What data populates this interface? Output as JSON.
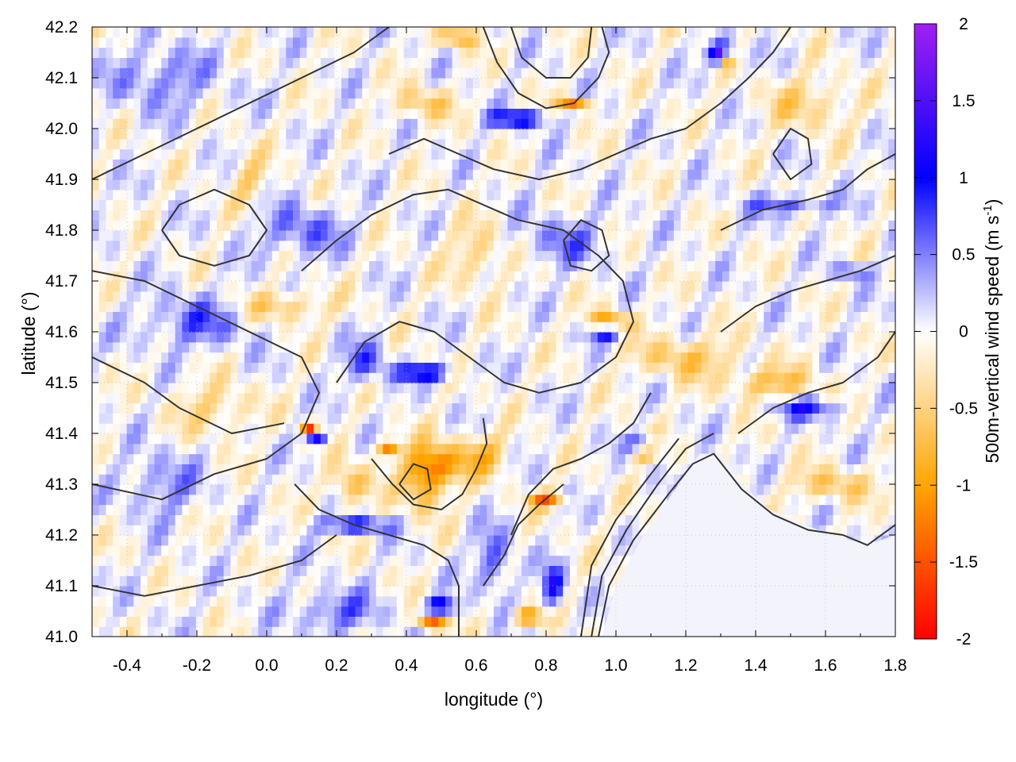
{
  "chart_data": {
    "type": "heatmap",
    "title": "",
    "xlabel": "longitude (°)",
    "ylabel": "latitude (°)",
    "colorbar_label": "500m-vertical wind speed (m s",
    "colorbar_label_sup": "-1",
    "colorbar_label_end": ")",
    "xlim": [
      -0.5,
      1.8
    ],
    "ylim": [
      41.0,
      42.2
    ],
    "clim": [
      -2,
      2
    ],
    "x_ticks": [
      {
        "value": -0.4,
        "label": "-0.4"
      },
      {
        "value": -0.2,
        "label": "-0.2"
      },
      {
        "value": 0.0,
        "label": "0.0"
      },
      {
        "value": 0.2,
        "label": "0.2"
      },
      {
        "value": 0.4,
        "label": "0.4"
      },
      {
        "value": 0.6,
        "label": "0.6"
      },
      {
        "value": 0.8,
        "label": "0.8"
      },
      {
        "value": 1.0,
        "label": "1.0"
      },
      {
        "value": 1.2,
        "label": "1.2"
      },
      {
        "value": 1.4,
        "label": "1.4"
      },
      {
        "value": 1.6,
        "label": "1.6"
      },
      {
        "value": 1.8,
        "label": "1.8"
      }
    ],
    "y_ticks": [
      {
        "value": 41.0,
        "label": "41.0"
      },
      {
        "value": 41.1,
        "label": "41.1"
      },
      {
        "value": 41.2,
        "label": "41.2"
      },
      {
        "value": 41.3,
        "label": "41.3"
      },
      {
        "value": 41.4,
        "label": "41.4"
      },
      {
        "value": 41.5,
        "label": "41.5"
      },
      {
        "value": 41.6,
        "label": "41.6"
      },
      {
        "value": 41.7,
        "label": "41.7"
      },
      {
        "value": 41.8,
        "label": "41.8"
      },
      {
        "value": 41.9,
        "label": "41.9"
      },
      {
        "value": 42.0,
        "label": "42.0"
      },
      {
        "value": 42.1,
        "label": "42.1"
      },
      {
        "value": 42.2,
        "label": "42.2"
      }
    ],
    "colorbar_ticks": [
      {
        "value": 2,
        "label": "2"
      },
      {
        "value": 1.5,
        "label": "1.5"
      },
      {
        "value": 1,
        "label": "1"
      },
      {
        "value": 0.5,
        "label": "0.5"
      },
      {
        "value": 0,
        "label": "0"
      },
      {
        "value": -0.5,
        "label": "-0.5"
      },
      {
        "value": -1,
        "label": "-1"
      },
      {
        "value": -1.5,
        "label": "-1.5"
      },
      {
        "value": -2,
        "label": "-2"
      }
    ],
    "colormap": [
      {
        "value": -2,
        "color": "#ff0000"
      },
      {
        "value": -1,
        "color": "#ffa500"
      },
      {
        "value": 0,
        "color": "#ffffff"
      },
      {
        "value": 1,
        "color": "#0000ff"
      },
      {
        "value": 2,
        "color": "#a020f0"
      }
    ],
    "grid": true,
    "contour_color": "#333333",
    "sea_region_color": "#f2f3fb",
    "features": [
      {
        "lon": 0.28,
        "lat": 41.54,
        "value": 0.7,
        "rx": 0.06,
        "ry": 0.04
      },
      {
        "lon": 0.45,
        "lat": 41.52,
        "value": 1.3,
        "rx": 0.08,
        "ry": 0.015
      },
      {
        "lon": 0.12,
        "lat": 41.41,
        "value": -1.6,
        "rx": 0.02,
        "ry": 0.012
      },
      {
        "lon": 0.14,
        "lat": 41.39,
        "value": 1.3,
        "rx": 0.03,
        "ry": 0.01
      },
      {
        "lon": 0.35,
        "lat": 41.37,
        "value": -1.4,
        "rx": 0.03,
        "ry": 0.015
      },
      {
        "lon": 0.45,
        "lat": 41.31,
        "value": -1.0,
        "rx": 0.06,
        "ry": 0.06
      },
      {
        "lon": 0.5,
        "lat": 41.34,
        "value": -0.8,
        "rx": 0.08,
        "ry": 0.04
      },
      {
        "lon": 0.62,
        "lat": 41.36,
        "value": -0.7,
        "rx": 0.07,
        "ry": 0.04
      },
      {
        "lon": 0.25,
        "lat": 41.22,
        "value": 1.4,
        "rx": 0.1,
        "ry": 0.012
      },
      {
        "lon": 0.24,
        "lat": 41.3,
        "value": -0.7,
        "rx": 0.06,
        "ry": 0.04
      },
      {
        "lon": 0.5,
        "lat": 41.06,
        "value": 1.5,
        "rx": 0.04,
        "ry": 0.015
      },
      {
        "lon": 0.47,
        "lat": 41.03,
        "value": -1.5,
        "rx": 0.04,
        "ry": 0.015
      },
      {
        "lon": 0.75,
        "lat": 41.04,
        "value": -1.3,
        "rx": 0.04,
        "ry": 0.015
      },
      {
        "lon": 0.8,
        "lat": 41.27,
        "value": -1.3,
        "rx": 0.05,
        "ry": 0.015
      },
      {
        "lon": 0.82,
        "lat": 41.1,
        "value": 1.1,
        "rx": 0.03,
        "ry": 0.04
      },
      {
        "lon": 0.88,
        "lat": 42.05,
        "value": -1.5,
        "rx": 0.04,
        "ry": 0.012
      },
      {
        "lon": 0.72,
        "lat": 42.02,
        "value": 1.3,
        "rx": 0.08,
        "ry": 0.015
      },
      {
        "lon": 0.98,
        "lat": 41.62,
        "value": -1.1,
        "rx": 0.06,
        "ry": 0.02
      },
      {
        "lon": 0.97,
        "lat": 41.6,
        "value": 1.2,
        "rx": 0.05,
        "ry": 0.015
      },
      {
        "lon": 1.07,
        "lat": 41.38,
        "value": 1.1,
        "rx": 0.05,
        "ry": 0.01
      },
      {
        "lon": 1.08,
        "lat": 41.36,
        "value": -1.2,
        "rx": 0.04,
        "ry": 0.01
      },
      {
        "lon": 1.3,
        "lat": 42.15,
        "value": 1.6,
        "rx": 0.04,
        "ry": 0.02
      },
      {
        "lon": 1.32,
        "lat": 42.14,
        "value": -1.5,
        "rx": 0.015,
        "ry": 0.015
      },
      {
        "lon": 0.55,
        "lat": 42.18,
        "value": -0.9,
        "rx": 0.05,
        "ry": 0.02
      },
      {
        "lon": 0.45,
        "lat": 42.05,
        "value": -0.6,
        "rx": 0.08,
        "ry": 0.03
      },
      {
        "lon": 0.1,
        "lat": 41.8,
        "value": 0.6,
        "rx": 0.12,
        "ry": 0.05
      },
      {
        "lon": -0.05,
        "lat": 41.9,
        "value": -0.5,
        "rx": 0.05,
        "ry": 0.05
      },
      {
        "lon": -0.2,
        "lat": 41.62,
        "value": 0.6,
        "rx": 0.15,
        "ry": 0.05
      },
      {
        "lon": -0.3,
        "lat": 41.3,
        "value": 0.5,
        "rx": 0.1,
        "ry": 0.06
      },
      {
        "lon": -0.15,
        "lat": 41.45,
        "value": -0.5,
        "rx": 0.1,
        "ry": 0.05
      },
      {
        "lon": 0.05,
        "lat": 41.65,
        "value": -0.6,
        "rx": 0.12,
        "ry": 0.03
      },
      {
        "lon": 1.2,
        "lat": 41.55,
        "value": -0.6,
        "rx": 0.15,
        "ry": 0.04
      },
      {
        "lon": 1.45,
        "lat": 41.5,
        "value": -0.7,
        "rx": 0.12,
        "ry": 0.03
      },
      {
        "lon": 1.55,
        "lat": 41.45,
        "value": 0.8,
        "rx": 0.1,
        "ry": 0.02
      },
      {
        "lon": 1.68,
        "lat": 41.72,
        "value": 1.0,
        "rx": 0.05,
        "ry": 0.012
      },
      {
        "lon": 1.5,
        "lat": 41.85,
        "value": 0.7,
        "rx": 0.12,
        "ry": 0.02
      },
      {
        "lon": 1.62,
        "lat": 41.3,
        "value": -0.6,
        "rx": 0.12,
        "ry": 0.03
      },
      {
        "lon": 0.6,
        "lat": 41.75,
        "value": -0.5,
        "rx": 0.08,
        "ry": 0.06
      },
      {
        "lon": 0.85,
        "lat": 41.78,
        "value": 0.5,
        "rx": 0.12,
        "ry": 0.05
      },
      {
        "lon": -0.3,
        "lat": 42.1,
        "value": 0.5,
        "rx": 0.15,
        "ry": 0.06
      },
      {
        "lon": 1.55,
        "lat": 42.05,
        "value": -0.5,
        "rx": 0.12,
        "ry": 0.05
      },
      {
        "lon": 0.2,
        "lat": 41.05,
        "value": 0.6,
        "rx": 0.12,
        "ry": 0.04
      },
      {
        "lon": 0.65,
        "lat": 41.15,
        "value": 0.7,
        "rx": 0.05,
        "ry": 0.06
      }
    ],
    "sea_polygon": [
      [
        0.96,
        41.0
      ],
      [
        1.0,
        41.1
      ],
      [
        1.08,
        41.2
      ],
      [
        1.18,
        41.3
      ],
      [
        1.24,
        41.36
      ],
      [
        1.3,
        41.36
      ],
      [
        1.36,
        41.3
      ],
      [
        1.44,
        41.25
      ],
      [
        1.54,
        41.22
      ],
      [
        1.62,
        41.2
      ],
      [
        1.72,
        41.18
      ],
      [
        1.8,
        41.2
      ],
      [
        1.8,
        41.0
      ]
    ],
    "contours": [
      [
        [
          0.95,
          41.0
        ],
        [
          0.98,
          41.1
        ],
        [
          1.05,
          41.19
        ],
        [
          1.15,
          41.28
        ],
        [
          1.22,
          41.34
        ],
        [
          1.28,
          41.36
        ],
        [
          1.36,
          41.29
        ],
        [
          1.45,
          41.24
        ],
        [
          1.55,
          41.21
        ],
        [
          1.65,
          41.2
        ],
        [
          1.72,
          41.18
        ],
        [
          1.8,
          41.22
        ]
      ],
      [
        [
          0.93,
          41.0
        ],
        [
          0.96,
          41.12
        ],
        [
          1.03,
          41.21
        ],
        [
          1.12,
          41.3
        ],
        [
          1.2,
          41.37
        ],
        [
          1.28,
          41.4
        ]
      ],
      [
        [
          0.9,
          41.0
        ],
        [
          0.93,
          41.14
        ],
        [
          1.0,
          41.23
        ],
        [
          1.1,
          41.32
        ],
        [
          1.18,
          41.39
        ]
      ],
      [
        [
          -0.5,
          41.3
        ],
        [
          -0.3,
          41.27
        ],
        [
          -0.15,
          41.32
        ],
        [
          0.0,
          41.35
        ],
        [
          0.1,
          41.4
        ],
        [
          0.15,
          41.48
        ],
        [
          0.1,
          41.55
        ],
        [
          -0.05,
          41.6
        ],
        [
          -0.2,
          41.65
        ],
        [
          -0.35,
          41.7
        ],
        [
          -0.5,
          41.72
        ]
      ],
      [
        [
          -0.5,
          41.55
        ],
        [
          -0.35,
          41.5
        ],
        [
          -0.25,
          41.45
        ],
        [
          -0.1,
          41.4
        ],
        [
          0.05,
          41.42
        ]
      ],
      [
        [
          0.2,
          41.5
        ],
        [
          0.28,
          41.58
        ],
        [
          0.38,
          41.62
        ],
        [
          0.48,
          41.6
        ],
        [
          0.58,
          41.55
        ],
        [
          0.68,
          41.5
        ],
        [
          0.78,
          41.48
        ],
        [
          0.9,
          41.5
        ],
        [
          1.0,
          41.55
        ],
        [
          1.05,
          41.62
        ],
        [
          1.02,
          41.7
        ],
        [
          0.95,
          41.75
        ],
        [
          0.85,
          41.8
        ],
        [
          0.72,
          41.82
        ],
        [
          0.62,
          41.85
        ],
        [
          0.52,
          41.88
        ],
        [
          0.42,
          41.87
        ],
        [
          0.3,
          41.83
        ],
        [
          0.2,
          41.78
        ],
        [
          0.1,
          41.72
        ]
      ],
      [
        [
          -0.5,
          41.9
        ],
        [
          -0.35,
          41.95
        ],
        [
          -0.2,
          42.0
        ],
        [
          -0.05,
          42.05
        ],
        [
          0.1,
          42.1
        ],
        [
          0.25,
          42.15
        ],
        [
          0.35,
          42.2
        ]
      ],
      [
        [
          0.35,
          41.95
        ],
        [
          0.45,
          41.98
        ],
        [
          0.55,
          41.95
        ],
        [
          0.65,
          41.92
        ],
        [
          0.78,
          41.9
        ],
        [
          0.9,
          41.92
        ],
        [
          1.0,
          41.95
        ],
        [
          1.1,
          41.98
        ],
        [
          1.2,
          42.0
        ],
        [
          1.3,
          42.05
        ],
        [
          1.38,
          42.1
        ],
        [
          1.45,
          42.15
        ],
        [
          1.5,
          42.2
        ]
      ],
      [
        [
          0.62,
          42.2
        ],
        [
          0.66,
          42.13
        ],
        [
          0.72,
          42.07
        ],
        [
          0.8,
          42.04
        ],
        [
          0.88,
          42.05
        ],
        [
          0.95,
          42.1
        ],
        [
          0.98,
          42.15
        ],
        [
          0.96,
          42.2
        ]
      ],
      [
        [
          0.7,
          42.2
        ],
        [
          0.73,
          42.14
        ],
        [
          0.8,
          42.1
        ],
        [
          0.87,
          42.1
        ],
        [
          0.92,
          42.14
        ],
        [
          0.93,
          42.2
        ]
      ],
      [
        [
          0.3,
          41.35
        ],
        [
          0.36,
          41.3
        ],
        [
          0.42,
          41.26
        ],
        [
          0.5,
          41.25
        ],
        [
          0.56,
          41.28
        ],
        [
          0.6,
          41.33
        ],
        [
          0.63,
          41.38
        ],
        [
          0.62,
          41.43
        ]
      ],
      [
        [
          0.08,
          41.3
        ],
        [
          0.15,
          41.25
        ],
        [
          0.25,
          41.22
        ],
        [
          0.35,
          41.2
        ],
        [
          0.45,
          41.18
        ],
        [
          0.52,
          41.15
        ],
        [
          0.55,
          41.1
        ],
        [
          0.55,
          41.0
        ]
      ],
      [
        [
          -0.5,
          41.1
        ],
        [
          -0.35,
          41.08
        ],
        [
          -0.2,
          41.1
        ],
        [
          -0.05,
          41.12
        ],
        [
          0.1,
          41.15
        ],
        [
          0.2,
          41.2
        ]
      ],
      [
        [
          0.7,
          41.2
        ],
        [
          0.75,
          41.28
        ],
        [
          0.82,
          41.33
        ],
        [
          0.9,
          41.35
        ],
        [
          0.98,
          41.38
        ],
        [
          1.05,
          41.42
        ],
        [
          1.1,
          41.48
        ]
      ],
      [
        [
          0.62,
          41.1
        ],
        [
          0.68,
          41.16
        ],
        [
          0.72,
          41.22
        ],
        [
          0.78,
          41.26
        ],
        [
          0.85,
          41.3
        ]
      ],
      [
        [
          1.3,
          41.6
        ],
        [
          1.4,
          41.65
        ],
        [
          1.5,
          41.68
        ],
        [
          1.6,
          41.7
        ],
        [
          1.7,
          41.72
        ],
        [
          1.8,
          41.75
        ]
      ],
      [
        [
          1.3,
          41.8
        ],
        [
          1.42,
          41.84
        ],
        [
          1.55,
          41.86
        ],
        [
          1.65,
          41.88
        ],
        [
          1.72,
          41.92
        ],
        [
          1.8,
          41.95
        ]
      ],
      [
        [
          1.35,
          41.4
        ],
        [
          1.45,
          41.45
        ],
        [
          1.55,
          41.48
        ],
        [
          1.65,
          41.5
        ],
        [
          1.75,
          41.55
        ],
        [
          1.8,
          41.6
        ]
      ],
      [
        [
          -0.3,
          41.8
        ],
        [
          -0.25,
          41.85
        ],
        [
          -0.15,
          41.88
        ],
        [
          -0.05,
          41.85
        ],
        [
          0.0,
          41.8
        ],
        [
          -0.05,
          41.75
        ],
        [
          -0.15,
          41.73
        ],
        [
          -0.25,
          41.75
        ],
        [
          -0.3,
          41.8
        ]
      ],
      [
        [
          0.85,
          41.78
        ],
        [
          0.9,
          41.82
        ],
        [
          0.96,
          41.8
        ],
        [
          0.98,
          41.75
        ],
        [
          0.93,
          41.72
        ],
        [
          0.87,
          41.73
        ],
        [
          0.85,
          41.78
        ]
      ],
      [
        [
          1.45,
          41.95
        ],
        [
          1.5,
          42.0
        ],
        [
          1.55,
          41.98
        ],
        [
          1.56,
          41.93
        ],
        [
          1.5,
          41.9
        ],
        [
          1.45,
          41.95
        ]
      ],
      [
        [
          0.38,
          41.3
        ],
        [
          0.42,
          41.34
        ],
        [
          0.46,
          41.33
        ],
        [
          0.47,
          41.29
        ],
        [
          0.42,
          41.27
        ],
        [
          0.38,
          41.3
        ]
      ]
    ]
  }
}
